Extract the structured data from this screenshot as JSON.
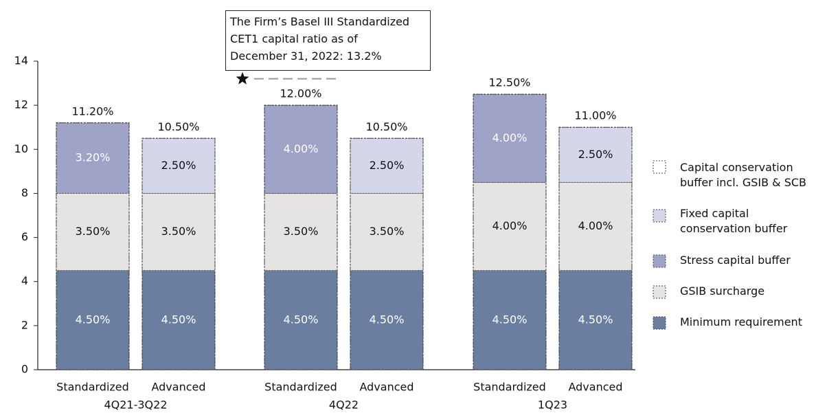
{
  "chart_data": {
    "type": "stacked_bar",
    "groups": [
      "4Q21-3Q22",
      "4Q22",
      "1Q23"
    ],
    "categories": [
      "Standardized",
      "Advanced",
      "Standardized",
      "Advanced",
      "Standardized",
      "Advanced"
    ],
    "series": [
      {
        "name": "Minimum requirement",
        "color": "#6a7fa0",
        "values": [
          4.5,
          4.5,
          4.5,
          4.5,
          4.5,
          4.5
        ],
        "value_labels": [
          "4.50%",
          "4.50%",
          "4.50%",
          "4.50%",
          "4.50%",
          "4.50%"
        ]
      },
      {
        "name": "GSIB surcharge",
        "color": "#e6e3e3",
        "values": [
          3.5,
          3.5,
          3.5,
          3.5,
          4.0,
          4.0
        ],
        "value_labels": [
          "3.50%",
          "3.50%",
          "3.50%",
          "3.50%",
          "4.00%",
          "4.00%"
        ]
      },
      {
        "name": "Stress capital buffer",
        "color": "#9fa3c8",
        "values": [
          3.2,
          null,
          4.0,
          null,
          4.0,
          null
        ],
        "value_labels": [
          "3.20%",
          null,
          "4.00%",
          null,
          "4.00%",
          null
        ]
      },
      {
        "name": "Fixed capital conservation buffer",
        "color": "#d4d7ea",
        "values": [
          null,
          2.5,
          null,
          2.5,
          null,
          2.5
        ],
        "value_labels": [
          null,
          "2.50%",
          null,
          "2.50%",
          null,
          "2.50%"
        ]
      }
    ],
    "total_series": {
      "name": "Capital conservation buffer incl. GSIB & SCB",
      "color": "#ffffff",
      "values": [
        11.2,
        10.5,
        12.0,
        10.5,
        12.5,
        11.0
      ],
      "value_labels": [
        "11.20%",
        "10.50%",
        "12.00%",
        "10.50%",
        "12.50%",
        "11.00%"
      ]
    },
    "annotation": {
      "lines": [
        "The Firm’s Basel III Standardized",
        "CET1 capital ratio as of",
        "December 31, 2022: 13.2%"
      ],
      "value": 13.2
    },
    "ylim": [
      0,
      14
    ],
    "yticks": [
      0,
      2,
      4,
      6,
      8,
      10,
      12,
      14
    ]
  }
}
